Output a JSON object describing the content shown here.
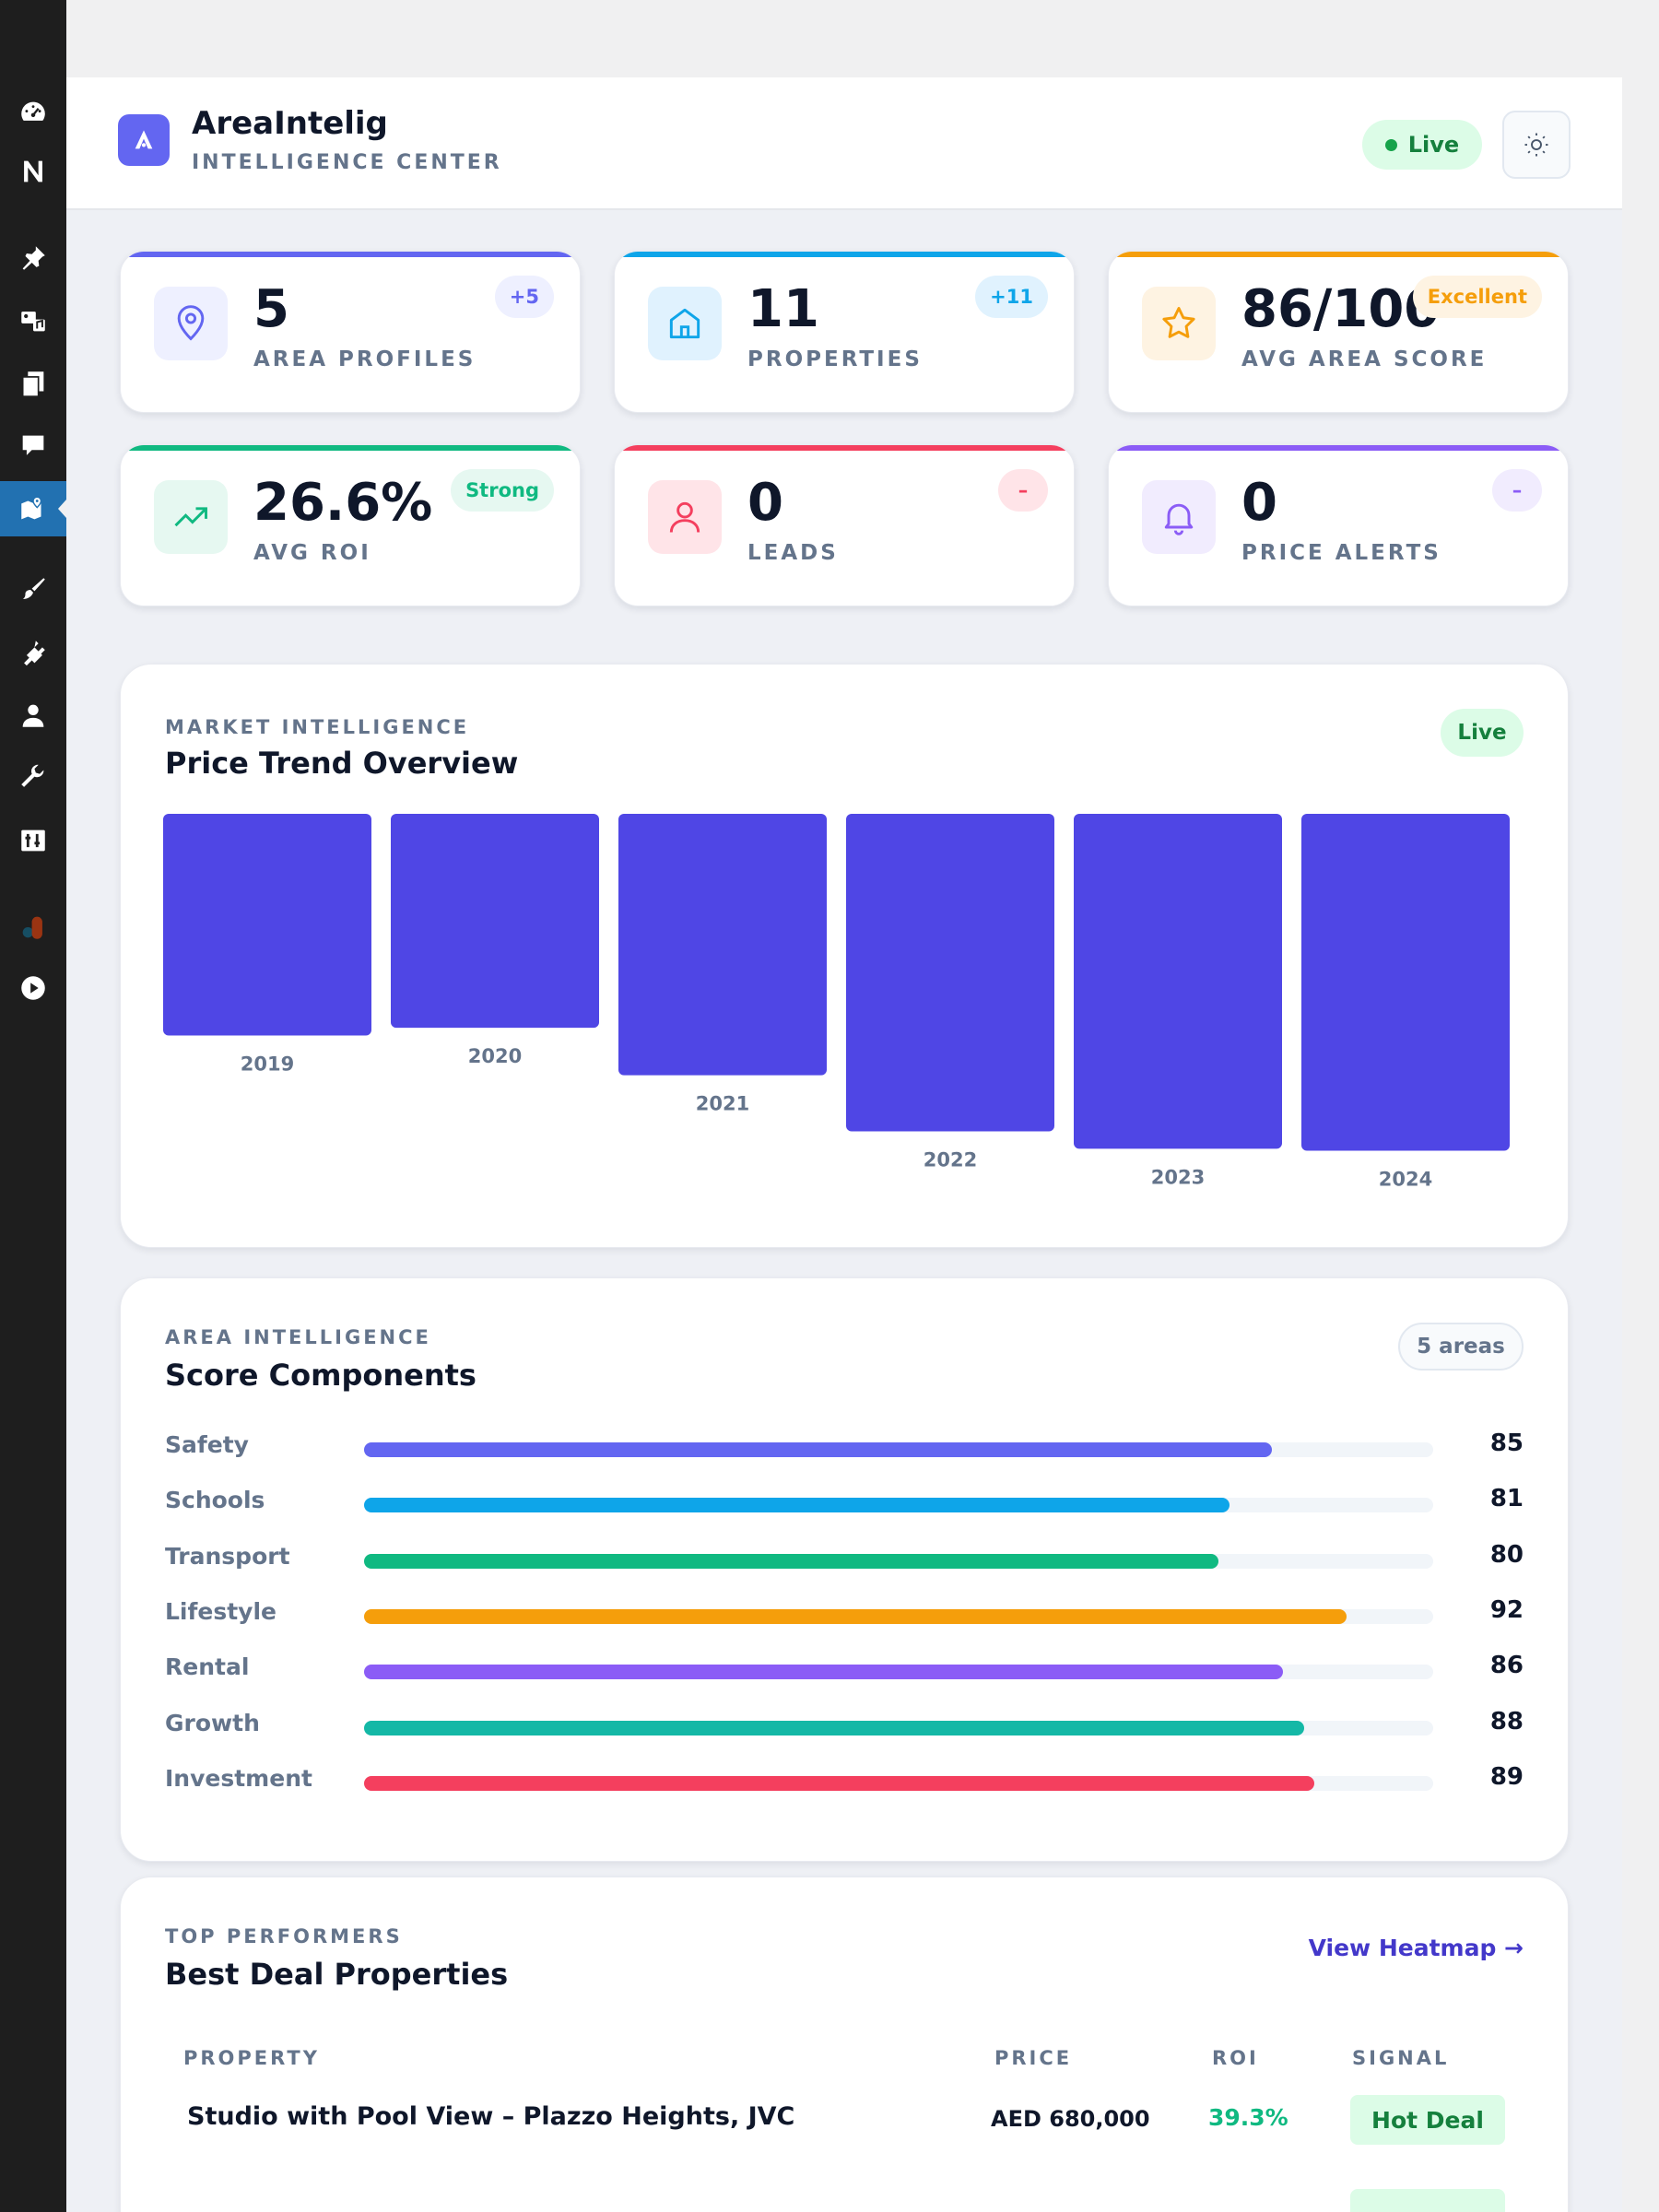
{
  "header": {
    "title": "AreaIntelig",
    "subtitle": "INTELLIGENCE CENTER",
    "live_label": "Live"
  },
  "sidebar": {
    "items": [
      {
        "icon": "dashboard-icon"
      },
      {
        "icon": "notion-icon"
      },
      {
        "icon": "pin-icon"
      },
      {
        "icon": "media-icon"
      },
      {
        "icon": "pages-icon"
      },
      {
        "icon": "comments-icon"
      },
      {
        "icon": "map-icon",
        "active": true
      },
      {
        "icon": "appearance-icon"
      },
      {
        "icon": "plugins-icon"
      },
      {
        "icon": "users-icon"
      },
      {
        "icon": "tools-icon"
      },
      {
        "icon": "settings-icon"
      },
      {
        "icon": "avatar-icon"
      },
      {
        "icon": "play-icon"
      }
    ]
  },
  "stats": [
    {
      "value": "5",
      "label": "AREA PROFILES",
      "badge": "+5",
      "color": "#6366f1",
      "icon": "map-pin-icon"
    },
    {
      "value": "11",
      "label": "PROPERTIES",
      "badge": "+11",
      "color": "#0ea5e9",
      "icon": "home-icon"
    },
    {
      "value": "86/100",
      "label": "AVG AREA SCORE",
      "badge": "Excellent",
      "color": "#f59e0b",
      "icon": "star-icon"
    },
    {
      "value": "26.6%",
      "label": "AVG ROI",
      "badge": "Strong",
      "color": "#10b981",
      "icon": "trending-up-icon"
    },
    {
      "value": "0",
      "label": "LEADS",
      "badge": "–",
      "color": "#f43f5e",
      "icon": "user-icon"
    },
    {
      "value": "0",
      "label": "PRICE ALERTS",
      "badge": "–",
      "color": "#8b5cf6",
      "icon": "bell-icon"
    }
  ],
  "price_trend": {
    "kicker": "MARKET INTELLIGENCE",
    "title": "Price Trend Overview",
    "badge": "Live"
  },
  "chart_data": {
    "type": "bar",
    "categories": [
      "2019",
      "2020",
      "2021",
      "2022",
      "2023",
      "2024"
    ],
    "values": [
      231,
      223,
      272,
      330,
      348,
      350
    ],
    "title": "Price Trend Overview",
    "xlabel": "",
    "ylabel": "",
    "grid": false,
    "legend": "none",
    "color": "#4f46e5"
  },
  "scores": {
    "kicker": "AREA INTELLIGENCE",
    "title": "Score Components",
    "badge": "5 areas",
    "items": [
      {
        "label": "Safety",
        "value": 85,
        "color": "#6366f1"
      },
      {
        "label": "Schools",
        "value": 81,
        "color": "#0ea5e9"
      },
      {
        "label": "Transport",
        "value": 80,
        "color": "#10b981"
      },
      {
        "label": "Lifestyle",
        "value": 92,
        "color": "#f59e0b"
      },
      {
        "label": "Rental",
        "value": 86,
        "color": "#8b5cf6"
      },
      {
        "label": "Growth",
        "value": 88,
        "color": "#14b8a6"
      },
      {
        "label": "Investment",
        "value": 89,
        "color": "#f43f5e"
      }
    ]
  },
  "deals": {
    "kicker": "TOP PERFORMERS",
    "title": "Best Deal Properties",
    "link": "View Heatmap →",
    "columns": [
      "PROPERTY",
      "PRICE",
      "ROI",
      "SIGNAL"
    ],
    "rows": [
      {
        "property": "Studio with Pool View – Plazzo Heights, JVC",
        "price": "AED 680,000",
        "roi": "39.3%",
        "signal": "Hot Deal"
      }
    ]
  }
}
